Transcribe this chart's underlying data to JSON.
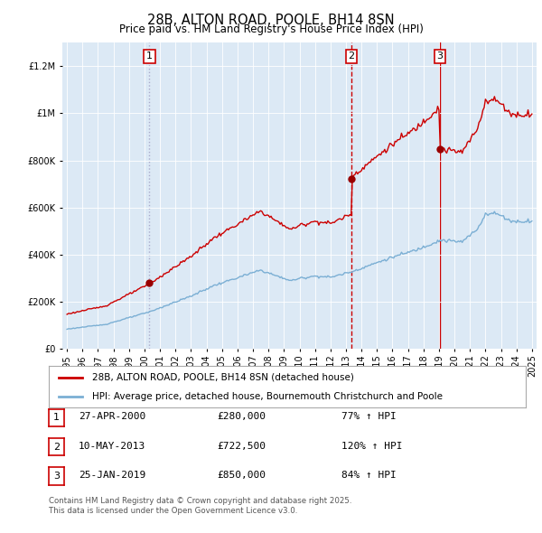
{
  "title": "28B, ALTON ROAD, POOLE, BH14 8SN",
  "subtitle": "Price paid vs. HM Land Registry's House Price Index (HPI)",
  "legend_line1": "28B, ALTON ROAD, POOLE, BH14 8SN (detached house)",
  "legend_line2": "HPI: Average price, detached house, Bournemouth Christchurch and Poole",
  "transactions": [
    {
      "num": 1,
      "date": "27-APR-2000",
      "price": 280000,
      "pct": "77%",
      "dir": "↑",
      "ref": "HPI"
    },
    {
      "num": 2,
      "date": "10-MAY-2013",
      "price": 722500,
      "pct": "120%",
      "dir": "↑",
      "ref": "HPI"
    },
    {
      "num": 3,
      "date": "25-JAN-2019",
      "price": 850000,
      "pct": "84%",
      "dir": "↑",
      "ref": "HPI"
    }
  ],
  "transaction_dates_decimal": [
    2000.32,
    2013.36,
    2019.07
  ],
  "transaction_prices": [
    280000,
    722500,
    850000
  ],
  "footnote_line1": "Contains HM Land Registry data © Crown copyright and database right 2025.",
  "footnote_line2": "This data is licensed under the Open Government Licence v3.0.",
  "bg_color": "#dce9f5",
  "line_color_red": "#cc0000",
  "line_color_blue": "#7bafd4",
  "marker_color": "#990000",
  "vline1_color": "#aaaacc",
  "vline1_style": "dotted",
  "vline2_color": "#cc0000",
  "vline2_style": "dashed",
  "vline3_color": "#cc0000",
  "vline3_style": "solid",
  "ylim": [
    0,
    1300000
  ],
  "yticks": [
    0,
    200000,
    400000,
    600000,
    800000,
    1000000,
    1200000
  ],
  "start_year": 1995,
  "end_year": 2025
}
